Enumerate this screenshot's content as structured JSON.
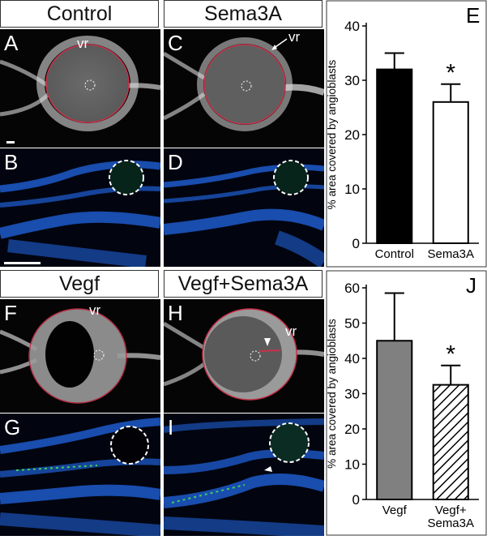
{
  "headers": {
    "control": "Control",
    "sema3a": "Sema3A",
    "vegf": "Vegf",
    "vegf_sema3a": "Vegf+Sema3A"
  },
  "panels": {
    "A": "A",
    "B": "B",
    "C": "C",
    "D": "D",
    "E": "E",
    "F": "F",
    "G": "G",
    "H": "H",
    "I": "I",
    "J": "J"
  },
  "annotations": {
    "vr": "vr"
  },
  "colors": {
    "ring": "#c8324a",
    "nuclei": "#1f5fd6",
    "endothelial": "#3fd25a",
    "retina_white": "#e8e8e8"
  },
  "chart_data": [
    {
      "type": "bar",
      "panel": "E",
      "title": "",
      "xlabel": "",
      "ylabel": "% area covered by angioblasts",
      "categories": [
        "Control",
        "Sema3A"
      ],
      "values": [
        32,
        26
      ],
      "errors": [
        3,
        3.3
      ],
      "ylim": [
        0,
        40
      ],
      "yticks": [
        0,
        10,
        20,
        30,
        40
      ],
      "fills": [
        "#000000",
        "#ffffff"
      ],
      "significance": [
        "",
        "*"
      ]
    },
    {
      "type": "bar",
      "panel": "J",
      "title": "",
      "xlabel": "",
      "ylabel": "% area covered by angioblasts",
      "categories": [
        "Vegf",
        "Vegf+\nSema3A"
      ],
      "values": [
        45,
        32.5
      ],
      "errors": [
        13.5,
        5.5
      ],
      "ylim": [
        0,
        60
      ],
      "yticks": [
        0,
        10,
        20,
        30,
        40,
        50,
        60
      ],
      "fills": [
        "#808080",
        "hatch"
      ],
      "significance": [
        "",
        "*"
      ]
    }
  ]
}
